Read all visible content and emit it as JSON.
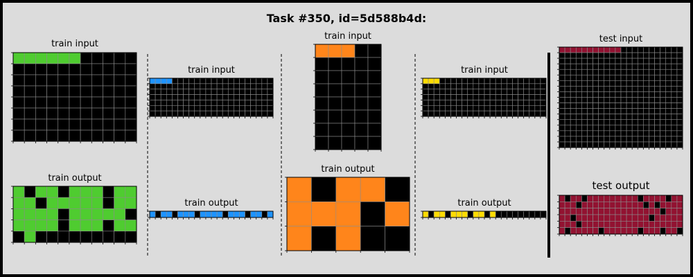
{
  "title": "Task #350, id=5d588b4d:",
  "colors": {
    "0": "#000000",
    "1": "#1e93ff",
    "2": "#f93c31",
    "3": "#4fcc30",
    "4": "#ffdc00",
    "5": "#999999",
    "6": "#e53aa3",
    "7": "#ff851b",
    "8": "#87216b",
    "9": "#921231"
  },
  "pairs": [
    {
      "input_label": "train input",
      "output_label": "train output",
      "input": [
        [
          3,
          3,
          3,
          3,
          3,
          3,
          0,
          0,
          0,
          0,
          0
        ],
        [
          0,
          0,
          0,
          0,
          0,
          0,
          0,
          0,
          0,
          0,
          0
        ],
        [
          0,
          0,
          0,
          0,
          0,
          0,
          0,
          0,
          0,
          0,
          0
        ],
        [
          0,
          0,
          0,
          0,
          0,
          0,
          0,
          0,
          0,
          0,
          0
        ],
        [
          0,
          0,
          0,
          0,
          0,
          0,
          0,
          0,
          0,
          0,
          0
        ],
        [
          0,
          0,
          0,
          0,
          0,
          0,
          0,
          0,
          0,
          0,
          0
        ],
        [
          0,
          0,
          0,
          0,
          0,
          0,
          0,
          0,
          0,
          0,
          0
        ],
        [
          0,
          0,
          0,
          0,
          0,
          0,
          0,
          0,
          0,
          0,
          0
        ]
      ],
      "output": [
        [
          3,
          0,
          3,
          3,
          0,
          3,
          3,
          3,
          0,
          3,
          3
        ],
        [
          3,
          3,
          0,
          3,
          3,
          3,
          3,
          3,
          0,
          3,
          3
        ],
        [
          3,
          3,
          3,
          3,
          0,
          3,
          3,
          3,
          3,
          3,
          0
        ],
        [
          3,
          3,
          3,
          3,
          0,
          3,
          3,
          3,
          0,
          3,
          3
        ],
        [
          0,
          3,
          0,
          0,
          0,
          0,
          0,
          0,
          0,
          0,
          0
        ]
      ]
    },
    {
      "input_label": "train input",
      "output_label": "train output",
      "input": [
        [
          1,
          1,
          1,
          1,
          0,
          0,
          0,
          0,
          0,
          0,
          0,
          0,
          0,
          0,
          0,
          0,
          0,
          0,
          0,
          0,
          0,
          0
        ],
        [
          0,
          0,
          0,
          0,
          0,
          0,
          0,
          0,
          0,
          0,
          0,
          0,
          0,
          0,
          0,
          0,
          0,
          0,
          0,
          0,
          0,
          0
        ],
        [
          0,
          0,
          0,
          0,
          0,
          0,
          0,
          0,
          0,
          0,
          0,
          0,
          0,
          0,
          0,
          0,
          0,
          0,
          0,
          0,
          0,
          0
        ],
        [
          0,
          0,
          0,
          0,
          0,
          0,
          0,
          0,
          0,
          0,
          0,
          0,
          0,
          0,
          0,
          0,
          0,
          0,
          0,
          0,
          0,
          0
        ],
        [
          0,
          0,
          0,
          0,
          0,
          0,
          0,
          0,
          0,
          0,
          0,
          0,
          0,
          0,
          0,
          0,
          0,
          0,
          0,
          0,
          0,
          0
        ],
        [
          0,
          0,
          0,
          0,
          0,
          0,
          0,
          0,
          0,
          0,
          0,
          0,
          0,
          0,
          0,
          0,
          0,
          0,
          0,
          0,
          0,
          0
        ],
        [
          0,
          0,
          0,
          0,
          0,
          0,
          0,
          0,
          0,
          0,
          0,
          0,
          0,
          0,
          0,
          0,
          0,
          0,
          0,
          0,
          0,
          0
        ]
      ],
      "output": [
        [
          1,
          0,
          1,
          1,
          0,
          1,
          1,
          1,
          0,
          1,
          1,
          1,
          1,
          0,
          1,
          1,
          1,
          0,
          1,
          1,
          0,
          1
        ]
      ]
    },
    {
      "input_label": "train input",
      "output_label": "train output",
      "input": [
        [
          7,
          7,
          7,
          0,
          0
        ],
        [
          0,
          0,
          0,
          0,
          0
        ],
        [
          0,
          0,
          0,
          0,
          0
        ],
        [
          0,
          0,
          0,
          0,
          0
        ],
        [
          0,
          0,
          0,
          0,
          0
        ],
        [
          0,
          0,
          0,
          0,
          0
        ],
        [
          0,
          0,
          0,
          0,
          0
        ],
        [
          0,
          0,
          0,
          0,
          0
        ]
      ],
      "output": [
        [
          7,
          0,
          7,
          7,
          0
        ],
        [
          7,
          7,
          7,
          0,
          7
        ],
        [
          7,
          0,
          7,
          0,
          0
        ]
      ]
    },
    {
      "input_label": "train input",
      "output_label": "train output",
      "input": [
        [
          4,
          4,
          4,
          0,
          0,
          0,
          0,
          0,
          0,
          0,
          0,
          0,
          0,
          0,
          0,
          0,
          0,
          0,
          0,
          0,
          0,
          0
        ],
        [
          0,
          0,
          0,
          0,
          0,
          0,
          0,
          0,
          0,
          0,
          0,
          0,
          0,
          0,
          0,
          0,
          0,
          0,
          0,
          0,
          0,
          0
        ],
        [
          0,
          0,
          0,
          0,
          0,
          0,
          0,
          0,
          0,
          0,
          0,
          0,
          0,
          0,
          0,
          0,
          0,
          0,
          0,
          0,
          0,
          0
        ],
        [
          0,
          0,
          0,
          0,
          0,
          0,
          0,
          0,
          0,
          0,
          0,
          0,
          0,
          0,
          0,
          0,
          0,
          0,
          0,
          0,
          0,
          0
        ],
        [
          0,
          0,
          0,
          0,
          0,
          0,
          0,
          0,
          0,
          0,
          0,
          0,
          0,
          0,
          0,
          0,
          0,
          0,
          0,
          0,
          0,
          0
        ],
        [
          0,
          0,
          0,
          0,
          0,
          0,
          0,
          0,
          0,
          0,
          0,
          0,
          0,
          0,
          0,
          0,
          0,
          0,
          0,
          0,
          0,
          0
        ],
        [
          0,
          0,
          0,
          0,
          0,
          0,
          0,
          0,
          0,
          0,
          0,
          0,
          0,
          0,
          0,
          0,
          0,
          0,
          0,
          0,
          0,
          0
        ]
      ],
      "output": [
        [
          4,
          0,
          4,
          4,
          0,
          4,
          4,
          4,
          0,
          4,
          4,
          0,
          4,
          0,
          0,
          0,
          0,
          0,
          0,
          0,
          0,
          0
        ]
      ]
    }
  ],
  "test": {
    "input_label": "test input",
    "output_label": "test output",
    "input": [
      [
        9,
        9,
        9,
        9,
        9,
        9,
        9,
        9,
        9,
        9,
        9,
        0,
        0,
        0,
        0,
        0,
        0,
        0,
        0,
        0,
        0,
        0
      ],
      [
        0,
        0,
        0,
        0,
        0,
        0,
        0,
        0,
        0,
        0,
        0,
        0,
        0,
        0,
        0,
        0,
        0,
        0,
        0,
        0,
        0,
        0
      ],
      [
        0,
        0,
        0,
        0,
        0,
        0,
        0,
        0,
        0,
        0,
        0,
        0,
        0,
        0,
        0,
        0,
        0,
        0,
        0,
        0,
        0,
        0
      ],
      [
        0,
        0,
        0,
        0,
        0,
        0,
        0,
        0,
        0,
        0,
        0,
        0,
        0,
        0,
        0,
        0,
        0,
        0,
        0,
        0,
        0,
        0
      ],
      [
        0,
        0,
        0,
        0,
        0,
        0,
        0,
        0,
        0,
        0,
        0,
        0,
        0,
        0,
        0,
        0,
        0,
        0,
        0,
        0,
        0,
        0
      ],
      [
        0,
        0,
        0,
        0,
        0,
        0,
        0,
        0,
        0,
        0,
        0,
        0,
        0,
        0,
        0,
        0,
        0,
        0,
        0,
        0,
        0,
        0
      ],
      [
        0,
        0,
        0,
        0,
        0,
        0,
        0,
        0,
        0,
        0,
        0,
        0,
        0,
        0,
        0,
        0,
        0,
        0,
        0,
        0,
        0,
        0
      ],
      [
        0,
        0,
        0,
        0,
        0,
        0,
        0,
        0,
        0,
        0,
        0,
        0,
        0,
        0,
        0,
        0,
        0,
        0,
        0,
        0,
        0,
        0
      ],
      [
        0,
        0,
        0,
        0,
        0,
        0,
        0,
        0,
        0,
        0,
        0,
        0,
        0,
        0,
        0,
        0,
        0,
        0,
        0,
        0,
        0,
        0
      ],
      [
        0,
        0,
        0,
        0,
        0,
        0,
        0,
        0,
        0,
        0,
        0,
        0,
        0,
        0,
        0,
        0,
        0,
        0,
        0,
        0,
        0,
        0
      ],
      [
        0,
        0,
        0,
        0,
        0,
        0,
        0,
        0,
        0,
        0,
        0,
        0,
        0,
        0,
        0,
        0,
        0,
        0,
        0,
        0,
        0,
        0
      ],
      [
        0,
        0,
        0,
        0,
        0,
        0,
        0,
        0,
        0,
        0,
        0,
        0,
        0,
        0,
        0,
        0,
        0,
        0,
        0,
        0,
        0,
        0
      ],
      [
        0,
        0,
        0,
        0,
        0,
        0,
        0,
        0,
        0,
        0,
        0,
        0,
        0,
        0,
        0,
        0,
        0,
        0,
        0,
        0,
        0,
        0
      ],
      [
        0,
        0,
        0,
        0,
        0,
        0,
        0,
        0,
        0,
        0,
        0,
        0,
        0,
        0,
        0,
        0,
        0,
        0,
        0,
        0,
        0,
        0
      ],
      [
        0,
        0,
        0,
        0,
        0,
        0,
        0,
        0,
        0,
        0,
        0,
        0,
        0,
        0,
        0,
        0,
        0,
        0,
        0,
        0,
        0,
        0
      ],
      [
        0,
        0,
        0,
        0,
        0,
        0,
        0,
        0,
        0,
        0,
        0,
        0,
        0,
        0,
        0,
        0,
        0,
        0,
        0,
        0,
        0,
        0
      ],
      [
        0,
        0,
        0,
        0,
        0,
        0,
        0,
        0,
        0,
        0,
        0,
        0,
        0,
        0,
        0,
        0,
        0,
        0,
        0,
        0,
        0,
        0
      ],
      [
        0,
        0,
        0,
        0,
        0,
        0,
        0,
        0,
        0,
        0,
        0,
        0,
        0,
        0,
        0,
        0,
        0,
        0,
        0,
        0,
        0,
        0
      ]
    ],
    "output": [
      [
        9,
        0,
        9,
        9,
        0,
        9,
        9,
        9,
        9,
        9,
        9,
        9,
        9,
        9,
        0,
        9,
        9,
        9,
        9,
        0,
        9,
        9
      ],
      [
        9,
        9,
        9,
        0,
        9,
        9,
        9,
        9,
        9,
        9,
        9,
        9,
        9,
        9,
        9,
        0,
        9,
        0,
        9,
        9,
        9,
        9
      ],
      [
        9,
        9,
        9,
        9,
        9,
        9,
        9,
        9,
        9,
        9,
        9,
        9,
        9,
        9,
        9,
        9,
        9,
        9,
        0,
        9,
        9,
        9
      ],
      [
        9,
        9,
        0,
        9,
        9,
        9,
        9,
        9,
        9,
        9,
        9,
        9,
        9,
        9,
        9,
        9,
        0,
        9,
        9,
        9,
        9,
        9
      ],
      [
        9,
        9,
        9,
        0,
        9,
        9,
        9,
        9,
        9,
        9,
        9,
        9,
        9,
        9,
        9,
        9,
        9,
        9,
        9,
        9,
        9,
        9
      ],
      [
        9,
        0,
        9,
        9,
        9,
        9,
        9,
        0,
        9,
        9,
        9,
        9,
        9,
        9,
        0,
        9,
        9,
        9,
        0,
        9,
        9,
        0
      ]
    ]
  }
}
